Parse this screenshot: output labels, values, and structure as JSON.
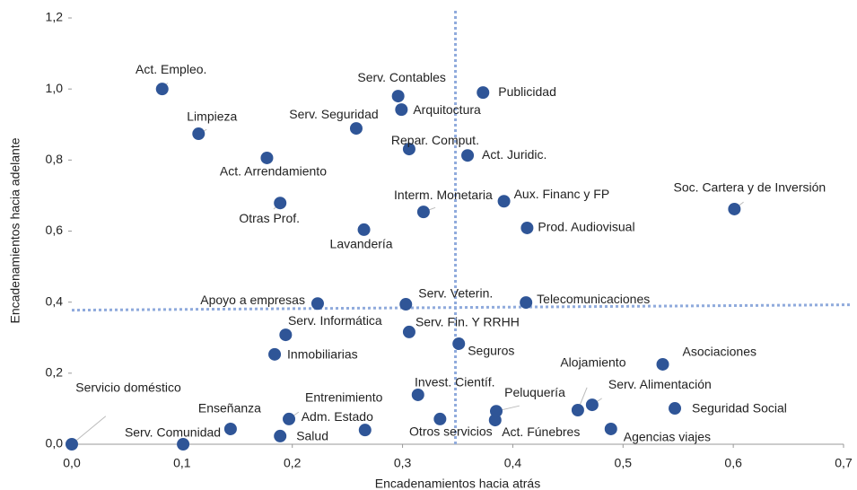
{
  "chart_data": {
    "type": "scatter",
    "x_label": "Encadenamientos hacia atrás",
    "y_label": "Encadenamientos hacia adelante",
    "xlim": [
      0,
      0.7
    ],
    "ylim": [
      0,
      1.2
    ],
    "xticks": [
      {
        "value": 0,
        "label": "0,0"
      },
      {
        "value": 0.1,
        "label": "0,1"
      },
      {
        "value": 0.2,
        "label": "0,2"
      },
      {
        "value": 0.3,
        "label": "0,3"
      },
      {
        "value": 0.4,
        "label": "0,4"
      },
      {
        "value": 0.5,
        "label": "0,5"
      },
      {
        "value": 0.6,
        "label": "0,6"
      },
      {
        "value": 0.7,
        "label": "0,7"
      }
    ],
    "yticks": [
      {
        "value": 0,
        "label": "0,0"
      },
      {
        "value": 0.2,
        "label": "0,2"
      },
      {
        "value": 0.4,
        "label": "0,4"
      },
      {
        "value": 0.6,
        "label": "0,6"
      },
      {
        "value": 0.8,
        "label": "0,8"
      },
      {
        "value": 1.0,
        "label": "1,0"
      },
      {
        "value": 1.2,
        "label": "1,2"
      }
    ],
    "reference_x": 0.348,
    "reference_y": 0.385,
    "reference_color": "#8faadc",
    "color": "#2f5597",
    "labels": [
      "Act. Empleo.",
      "Limpieza",
      "Act. Arrendamiento",
      "Otras Prof.",
      "Lavandería",
      "Serv. Seguridad",
      "Serv. Contables",
      "Arquitoctura",
      "Publicidad",
      "Repar. Comput.",
      "Act. Juridic.",
      "Interm. Monetaria",
      "Aux. Financ y FP",
      "Prod. Audiovisual",
      "Soc. Cartera y de Inversión",
      "Apoyo a empresas",
      "Serv. Veterin.",
      "Telecomunicaciones",
      "Serv. Informática",
      "Inmobiliarias",
      "Serv. Fin. Y RRHH",
      "Seguros",
      "Asociaciones",
      "Alojamiento",
      "Serv. Alimentación",
      "Seguridad Social",
      "Agencias viajes",
      "Act. Fúnebres",
      "Peluquería",
      "Invest. Científ.",
      "Otros servicios",
      "Adm. Estado",
      "Salud",
      "Entrenimiento",
      "Enseñanza",
      "Serv. Comunidad",
      "Servicio doméstico"
    ],
    "x": [
      0.082,
      0.115,
      0.177,
      0.189,
      0.265,
      0.258,
      0.296,
      0.299,
      0.373,
      0.306,
      0.359,
      0.319,
      0.392,
      0.413,
      0.601,
      0.223,
      0.303,
      0.412,
      0.194,
      0.184,
      0.306,
      0.351,
      0.536,
      0.459,
      0.472,
      0.547,
      0.489,
      0.384,
      0.385,
      0.314,
      0.334,
      0.266,
      0.189,
      0.197,
      0.144,
      0.101,
      0
    ],
    "y": [
      1.0,
      0.874,
      0.806,
      0.679,
      0.604,
      0.889,
      0.98,
      0.942,
      0.99,
      0.831,
      0.813,
      0.654,
      0.684,
      0.609,
      0.662,
      0.396,
      0.394,
      0.399,
      0.308,
      0.253,
      0.316,
      0.283,
      0.225,
      0.096,
      0.111,
      0.101,
      0.043,
      0.068,
      0.093,
      0.139,
      0.071,
      0.04,
      0.023,
      0.071,
      0.043,
      0,
      0
    ]
  }
}
